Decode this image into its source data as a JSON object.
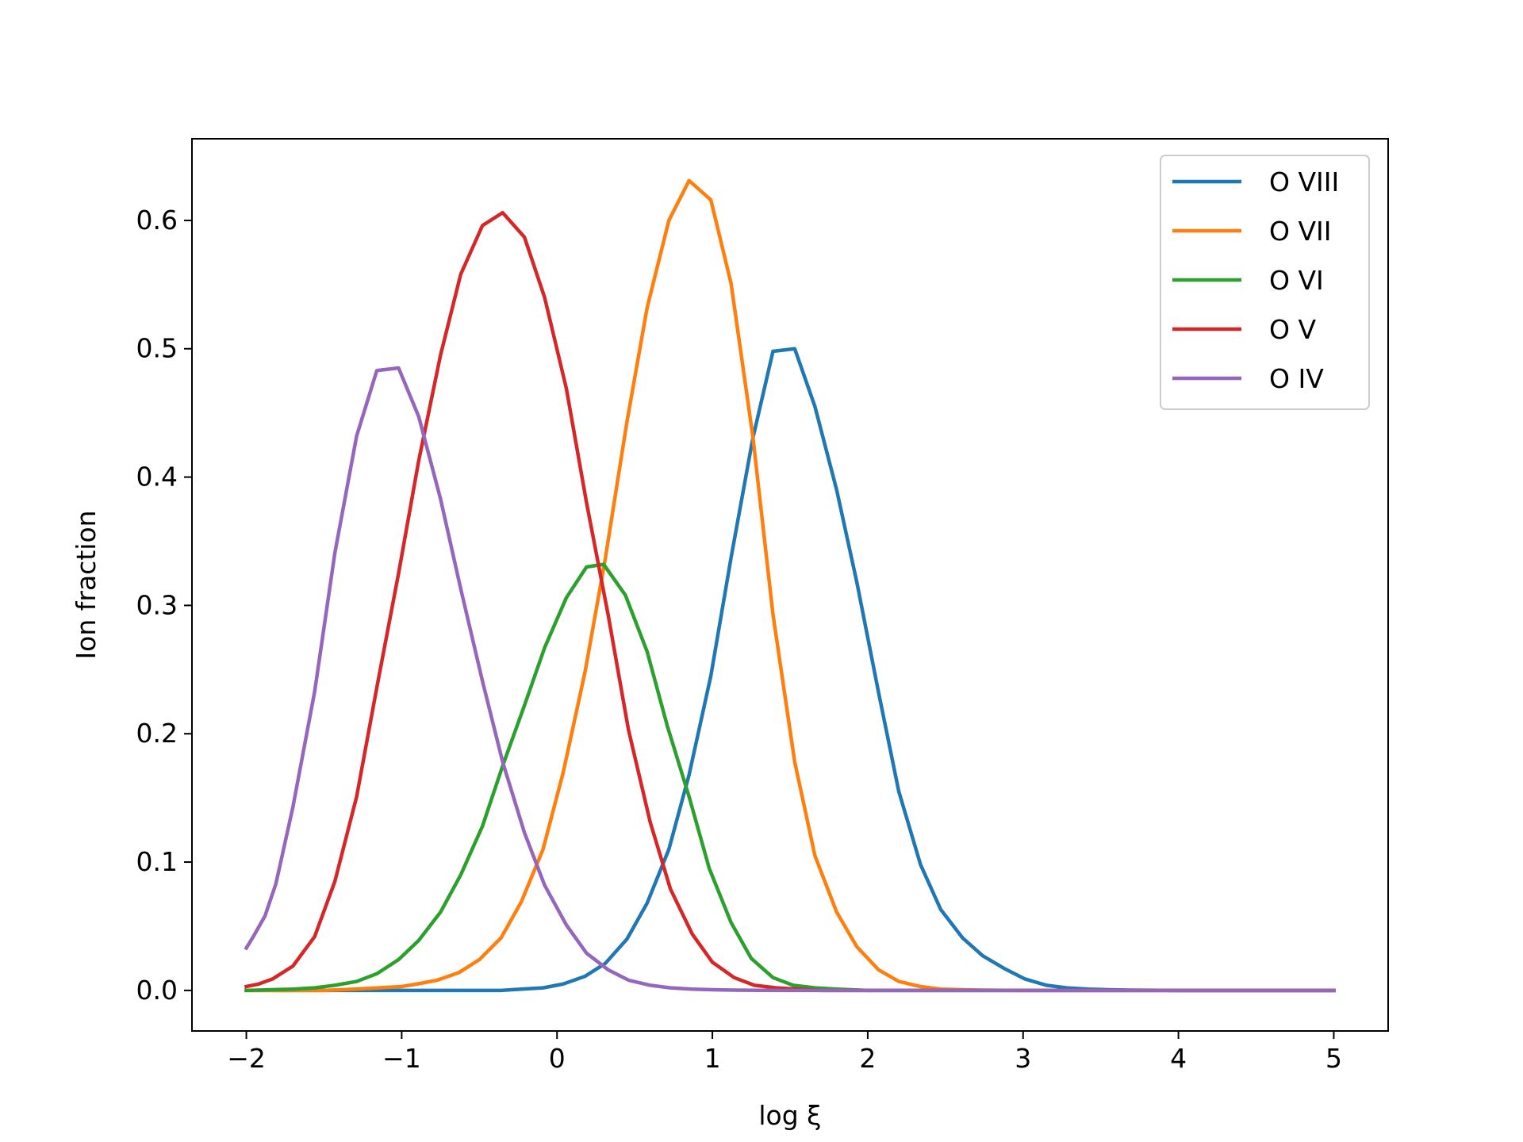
{
  "chart_data": {
    "type": "line",
    "title": "",
    "xlabel": "log ξ",
    "ylabel": "Ion fraction",
    "xlim": [
      -2.35,
      5.35
    ],
    "ylim": [
      -0.0316,
      0.6636
    ],
    "xticks": [
      -2,
      -1,
      0,
      1,
      2,
      3,
      4,
      5
    ],
    "xtick_labels": [
      "−2",
      "−1",
      "0",
      "1",
      "2",
      "3",
      "4",
      "5"
    ],
    "yticks": [
      0.0,
      0.1,
      0.2,
      0.3,
      0.4,
      0.5,
      0.6
    ],
    "ytick_labels": [
      "0.0",
      "0.1",
      "0.2",
      "0.3",
      "0.4",
      "0.5",
      "0.6"
    ],
    "grid": false,
    "legend_position": "top-right",
    "series": [
      {
        "name": "O VIII",
        "color": "#1f77b4",
        "x": [
          -2.0,
          -0.5,
          -0.36,
          -0.23,
          -0.09,
          0.04,
          0.18,
          0.31,
          0.45,
          0.58,
          0.72,
          0.85,
          0.99,
          1.12,
          1.26,
          1.39,
          1.53,
          1.66,
          1.8,
          1.93,
          2.07,
          2.2,
          2.34,
          2.47,
          2.61,
          2.74,
          2.88,
          3.01,
          3.15,
          3.28,
          3.42,
          3.55,
          3.7,
          4.0,
          5.0
        ],
        "y": [
          0.0,
          0.0,
          0.0,
          0.001,
          0.002,
          0.005,
          0.011,
          0.021,
          0.04,
          0.068,
          0.11,
          0.168,
          0.245,
          0.337,
          0.43,
          0.498,
          0.5,
          0.455,
          0.39,
          0.318,
          0.232,
          0.155,
          0.098,
          0.063,
          0.041,
          0.027,
          0.017,
          0.009,
          0.004,
          0.002,
          0.001,
          0.0005,
          0.0002,
          0.0,
          0.0
        ]
      },
      {
        "name": "O VII",
        "color": "#ff7f0e",
        "x": [
          -2.0,
          -1.5,
          -1.3,
          -1.15,
          -1.0,
          -0.9,
          -0.77,
          -0.63,
          -0.5,
          -0.36,
          -0.23,
          -0.09,
          0.04,
          0.18,
          0.31,
          0.45,
          0.58,
          0.72,
          0.85,
          0.99,
          1.12,
          1.26,
          1.39,
          1.53,
          1.66,
          1.8,
          1.93,
          2.07,
          2.2,
          2.34,
          2.47,
          2.61,
          2.74,
          2.88,
          3.0,
          5.0
        ],
        "y": [
          0.0,
          0.0,
          0.001,
          0.002,
          0.003,
          0.005,
          0.008,
          0.014,
          0.024,
          0.041,
          0.069,
          0.11,
          0.17,
          0.248,
          0.336,
          0.443,
          0.532,
          0.6,
          0.631,
          0.616,
          0.551,
          0.432,
          0.293,
          0.178,
          0.105,
          0.061,
          0.034,
          0.016,
          0.007,
          0.003,
          0.001,
          0.0005,
          0.0002,
          0.0001,
          0.0,
          0.0
        ]
      },
      {
        "name": "O VI",
        "color": "#2ca02c",
        "x": [
          -2.0,
          -1.7,
          -1.56,
          -1.43,
          -1.29,
          -1.16,
          -1.02,
          -0.89,
          -0.75,
          -0.62,
          -0.48,
          -0.35,
          -0.21,
          -0.08,
          0.06,
          0.19,
          0.3,
          0.44,
          0.58,
          0.71,
          0.85,
          0.98,
          1.12,
          1.25,
          1.39,
          1.52,
          1.66,
          1.8,
          2.0,
          5.0
        ],
        "y": [
          0.0,
          0.001,
          0.002,
          0.004,
          0.007,
          0.013,
          0.024,
          0.039,
          0.061,
          0.09,
          0.128,
          0.175,
          0.222,
          0.267,
          0.306,
          0.33,
          0.332,
          0.308,
          0.264,
          0.206,
          0.151,
          0.095,
          0.053,
          0.025,
          0.01,
          0.004,
          0.002,
          0.001,
          0.0,
          0.0
        ]
      },
      {
        "name": "O V",
        "color": "#d62728",
        "x": [
          -2.0,
          -1.92,
          -1.83,
          -1.7,
          -1.56,
          -1.43,
          -1.29,
          -1.16,
          -1.02,
          -0.89,
          -0.75,
          -0.62,
          -0.48,
          -0.35,
          -0.21,
          -0.08,
          0.06,
          0.19,
          0.33,
          0.46,
          0.6,
          0.73,
          0.87,
          1.0,
          1.14,
          1.27,
          1.41,
          1.55,
          1.7,
          5.0
        ],
        "y": [
          0.003,
          0.005,
          0.009,
          0.019,
          0.042,
          0.085,
          0.151,
          0.236,
          0.325,
          0.413,
          0.495,
          0.558,
          0.596,
          0.606,
          0.587,
          0.54,
          0.469,
          0.38,
          0.292,
          0.203,
          0.131,
          0.079,
          0.044,
          0.022,
          0.01,
          0.004,
          0.002,
          0.001,
          0.0,
          0.0
        ]
      },
      {
        "name": "O IV",
        "color": "#9467bd",
        "x": [
          -2.0,
          -1.95,
          -1.88,
          -1.81,
          -1.7,
          -1.56,
          -1.43,
          -1.29,
          -1.16,
          -1.02,
          -0.89,
          -0.75,
          -0.62,
          -0.48,
          -0.35,
          -0.21,
          -0.08,
          0.06,
          0.19,
          0.33,
          0.46,
          0.6,
          0.73,
          0.87,
          1.0,
          1.14,
          1.3,
          1.5,
          1.8,
          5.0
        ],
        "y": [
          0.033,
          0.043,
          0.058,
          0.083,
          0.143,
          0.233,
          0.341,
          0.432,
          0.483,
          0.485,
          0.447,
          0.383,
          0.313,
          0.241,
          0.178,
          0.123,
          0.082,
          0.051,
          0.029,
          0.016,
          0.008,
          0.004,
          0.002,
          0.001,
          0.0005,
          0.0002,
          0.0001,
          0.0,
          0.0,
          0.0
        ]
      }
    ]
  }
}
